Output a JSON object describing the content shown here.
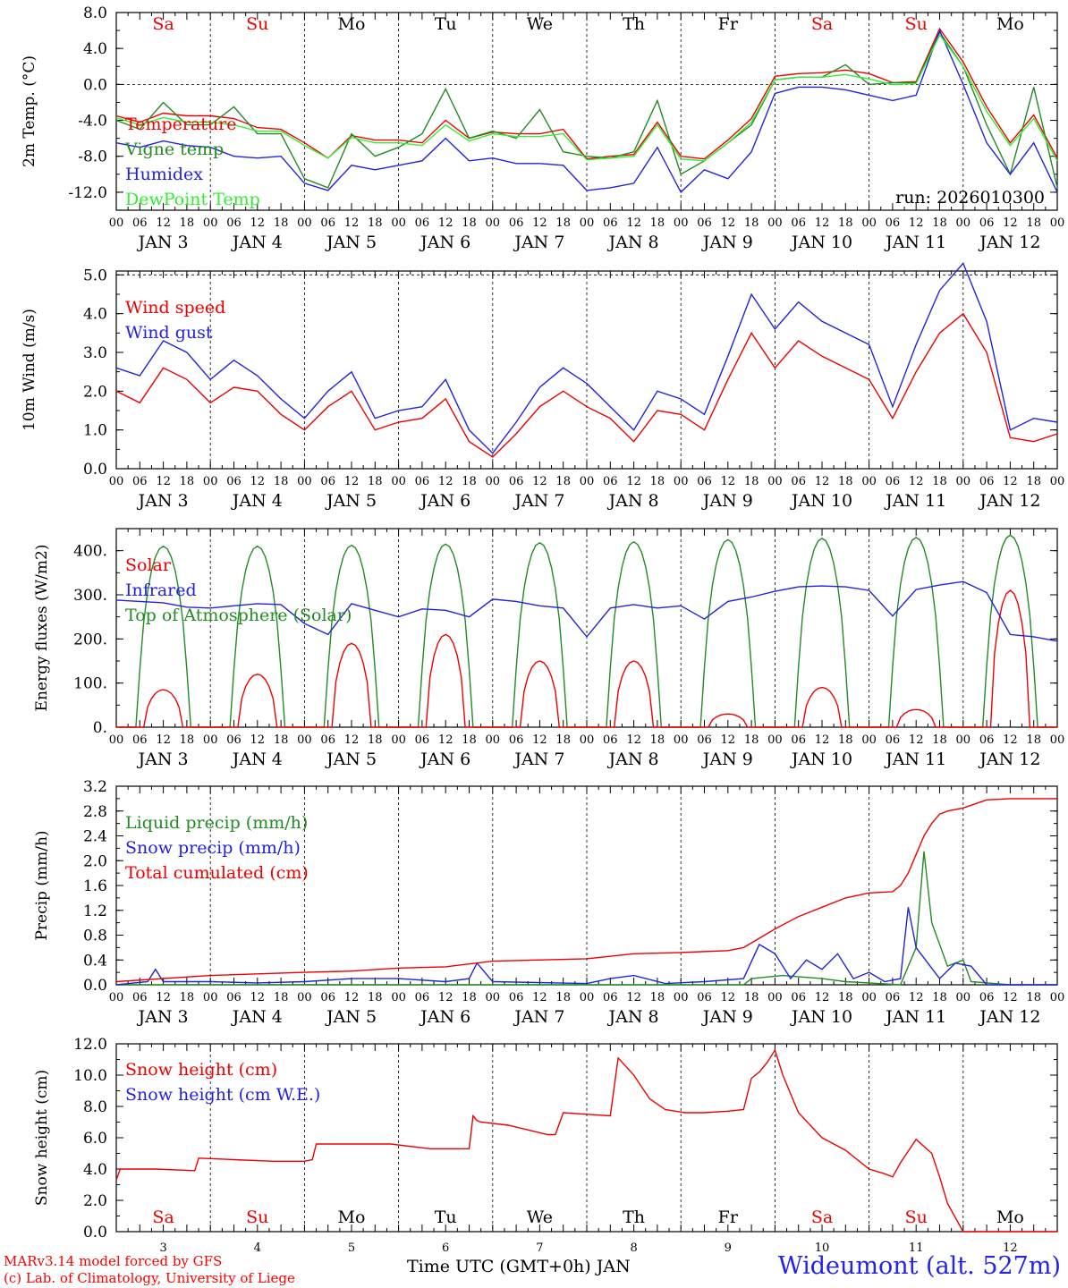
{
  "chart_data": [
    {
      "type": "line",
      "ylabel": "2m Temp. (°C)",
      "ylim": [
        -14,
        8
      ],
      "yticks": [
        -12.0,
        -8.0,
        -4.0,
        0.0,
        4.0,
        8.0
      ],
      "ytick_labels": [
        "-12.0",
        "-8.0",
        "-4.0",
        "0.0",
        "4.0",
        "8.0"
      ],
      "dashed_reference": [
        0
      ],
      "run_label": "run: 2026010300",
      "series": [
        {
          "name": "Temperature",
          "color": "#ee0000",
          "x": [
            0,
            6,
            12,
            18,
            24,
            30,
            36,
            42,
            48,
            54,
            60,
            66,
            72,
            78,
            84,
            90,
            96,
            102,
            108,
            114,
            120,
            126,
            132,
            138,
            144,
            150,
            156,
            162,
            168,
            174,
            180,
            186,
            192,
            198,
            204,
            210,
            216,
            222,
            228,
            234,
            240
          ],
          "values": [
            -3.5,
            -4.2,
            -3.2,
            -3.5,
            -3.5,
            -3.8,
            -4.8,
            -5.0,
            -6.5,
            -8.2,
            -5.7,
            -6.2,
            -6.2,
            -6.5,
            -4.0,
            -6.0,
            -5.3,
            -5.5,
            -5.5,
            -5.0,
            -8.3,
            -8.0,
            -7.8,
            -4.2,
            -8.0,
            -8.3,
            -6.2,
            -3.8,
            0.9,
            1.2,
            1.3,
            1.6,
            1.2,
            0.2,
            0.3,
            6.2,
            2.5,
            -2.5,
            -6.5,
            -3.4,
            -8.2
          ]
        },
        {
          "name": "Vigne temp",
          "color": "#228b22",
          "x": [
            0,
            6,
            12,
            18,
            24,
            30,
            36,
            42,
            48,
            54,
            60,
            66,
            72,
            78,
            84,
            90,
            96,
            102,
            108,
            114,
            120,
            126,
            132,
            138,
            144,
            150,
            156,
            162,
            168,
            174,
            180,
            186,
            192,
            198,
            204,
            210,
            216,
            222,
            228,
            234,
            240
          ],
          "values": [
            -4.0,
            -5.0,
            -2.0,
            -4.5,
            -4.5,
            -2.5,
            -5.5,
            -5.5,
            -10.5,
            -11.5,
            -5.5,
            -8.0,
            -7.0,
            -5.5,
            -0.5,
            -6.0,
            -5.2,
            -6.0,
            -2.8,
            -7.5,
            -8.0,
            -8.2,
            -7.5,
            -1.8,
            -10.0,
            -8.5,
            -6.5,
            -4.5,
            0.5,
            0.8,
            0.8,
            2.2,
            0.0,
            0.2,
            0.2,
            5.8,
            2.0,
            -4.5,
            -10.0,
            -0.3,
            -11.5
          ]
        },
        {
          "name": "Humidex",
          "color": "#2222dd",
          "x": [
            0,
            6,
            12,
            18,
            24,
            30,
            36,
            42,
            48,
            54,
            60,
            66,
            72,
            78,
            84,
            90,
            96,
            102,
            108,
            114,
            120,
            126,
            132,
            138,
            144,
            150,
            156,
            162,
            168,
            174,
            180,
            186,
            192,
            198,
            204,
            210,
            216,
            222,
            228,
            234,
            240
          ],
          "values": [
            -6.5,
            -7.0,
            -6.3,
            -6.8,
            -7.0,
            -8.0,
            -8.2,
            -8.0,
            -11.0,
            -11.8,
            -9.0,
            -9.5,
            -9.0,
            -8.5,
            -6.0,
            -8.5,
            -8.2,
            -8.8,
            -8.8,
            -9.0,
            -11.8,
            -11.5,
            -11.0,
            -7.0,
            -12.0,
            -9.5,
            -10.5,
            -7.5,
            -1.0,
            -0.3,
            -0.3,
            -0.6,
            -1.2,
            -1.8,
            -1.2,
            6.0,
            0.0,
            -6.5,
            -10.0,
            -6.5,
            -12.0
          ]
        },
        {
          "name": "DewPoint Temp",
          "color": "#33ee33",
          "x": [
            0,
            6,
            12,
            18,
            24,
            30,
            36,
            42,
            48,
            54,
            60,
            66,
            72,
            78,
            84,
            90,
            96,
            102,
            108,
            114,
            120,
            126,
            132,
            138,
            144,
            150,
            156,
            162,
            168,
            174,
            180,
            186,
            192,
            198,
            204,
            210,
            216,
            222,
            228,
            234,
            240
          ],
          "values": [
            -3.7,
            -4.5,
            -3.7,
            -4.2,
            -4.2,
            -4.5,
            -5.2,
            -5.2,
            -6.8,
            -8.2,
            -5.9,
            -6.5,
            -6.5,
            -6.8,
            -4.5,
            -6.3,
            -5.5,
            -5.8,
            -5.8,
            -5.5,
            -8.4,
            -8.2,
            -8.0,
            -4.5,
            -8.3,
            -8.5,
            -6.5,
            -4.2,
            0.5,
            0.8,
            0.8,
            1.1,
            0.6,
            0.0,
            0.1,
            5.5,
            2.0,
            -3.0,
            -6.8,
            -3.8,
            -8.5
          ]
        }
      ]
    },
    {
      "type": "line",
      "ylabel": "10m Wind (m/s)",
      "ylim": [
        0,
        5.1
      ],
      "yticks": [
        0.0,
        1.0,
        2.0,
        3.0,
        4.0,
        5.0
      ],
      "ytick_labels": [
        "0.0",
        "1.0",
        "2.0",
        "3.0",
        "4.0",
        "5.0"
      ],
      "dashed_reference": [
        5.0
      ],
      "series": [
        {
          "name": "Wind speed",
          "color": "#ee0000",
          "x": [
            0,
            6,
            12,
            18,
            24,
            30,
            36,
            42,
            48,
            54,
            60,
            66,
            72,
            78,
            84,
            90,
            96,
            102,
            108,
            114,
            120,
            126,
            132,
            138,
            144,
            150,
            156,
            162,
            168,
            174,
            180,
            186,
            192,
            198,
            204,
            210,
            216,
            222,
            228,
            234,
            240
          ],
          "values": [
            2.0,
            1.7,
            2.6,
            2.3,
            1.7,
            2.1,
            2.0,
            1.4,
            1.0,
            1.6,
            2.0,
            1.0,
            1.2,
            1.3,
            1.8,
            0.7,
            0.3,
            0.9,
            1.6,
            2.0,
            1.6,
            1.3,
            0.7,
            1.5,
            1.4,
            1.0,
            2.3,
            3.5,
            2.6,
            3.3,
            2.9,
            2.6,
            2.3,
            1.3,
            2.5,
            3.5,
            4.0,
            3.0,
            0.8,
            0.7,
            0.9
          ]
        },
        {
          "name": "Wind gust",
          "color": "#2222dd",
          "x": [
            0,
            6,
            12,
            18,
            24,
            30,
            36,
            42,
            48,
            54,
            60,
            66,
            72,
            78,
            84,
            90,
            96,
            102,
            108,
            114,
            120,
            126,
            132,
            138,
            144,
            150,
            156,
            162,
            168,
            174,
            180,
            186,
            192,
            198,
            204,
            210,
            216,
            222,
            228,
            234,
            240
          ],
          "values": [
            2.6,
            2.4,
            3.3,
            3.0,
            2.3,
            2.8,
            2.4,
            1.8,
            1.3,
            2.0,
            2.5,
            1.3,
            1.5,
            1.6,
            2.3,
            1.0,
            0.4,
            1.2,
            2.1,
            2.6,
            2.2,
            1.6,
            1.0,
            2.0,
            1.8,
            1.4,
            2.9,
            4.5,
            3.6,
            4.3,
            3.8,
            3.5,
            3.2,
            1.6,
            3.2,
            4.6,
            5.3,
            3.8,
            1.0,
            1.3,
            1.2
          ]
        }
      ]
    },
    {
      "type": "line",
      "ylabel": "Energy fluxes (W/m2)",
      "ylim": [
        0,
        450
      ],
      "yticks": [
        0,
        100,
        200,
        300,
        400
      ],
      "ytick_labels": [
        "0.",
        "100.",
        "200.",
        "300.",
        "400."
      ],
      "solar_peaks": [
        85,
        120,
        190,
        210,
        150,
        150,
        30,
        90,
        40,
        310
      ],
      "toa_peaks": [
        410,
        410,
        412,
        415,
        418,
        420,
        425,
        428,
        430,
        435
      ],
      "series": [
        {
          "name": "Solar",
          "color": "#ee0000"
        },
        {
          "name": "Infrared",
          "color": "#2222dd",
          "x": [
            0,
            6,
            12,
            18,
            24,
            30,
            36,
            42,
            48,
            54,
            60,
            66,
            72,
            78,
            84,
            90,
            96,
            102,
            108,
            114,
            120,
            126,
            132,
            138,
            144,
            150,
            156,
            162,
            168,
            174,
            180,
            186,
            192,
            198,
            204,
            210,
            216,
            222,
            228,
            234,
            240
          ],
          "values": [
            288,
            285,
            282,
            272,
            270,
            275,
            280,
            278,
            235,
            210,
            280,
            265,
            250,
            268,
            265,
            250,
            290,
            285,
            275,
            270,
            205,
            270,
            278,
            270,
            275,
            245,
            285,
            295,
            308,
            318,
            320,
            318,
            310,
            252,
            312,
            322,
            330,
            305,
            210,
            205,
            195
          ]
        },
        {
          "name": "Top of Atmosphere (Solar)",
          "color": "#228b22"
        }
      ]
    },
    {
      "type": "line",
      "ylabel": "Precip (mm/h)",
      "ylim": [
        0,
        3.2
      ],
      "yticks": [
        0.0,
        0.4,
        0.8,
        1.2,
        1.6,
        2.0,
        2.4,
        2.8,
        3.2
      ],
      "ytick_labels": [
        "0.0",
        "0.4",
        "0.8",
        "1.2",
        "1.6",
        "2.0",
        "2.4",
        "2.8",
        "3.2"
      ],
      "series": [
        {
          "name": "Liquid precip (mm/h)",
          "color": "#228b22",
          "x": [
            0,
            48,
            96,
            144,
            150,
            156,
            160,
            162,
            170,
            180,
            186,
            200,
            204,
            206,
            208,
            212,
            216,
            218,
            228,
            240
          ],
          "values": [
            0,
            0,
            0,
            0,
            0,
            0,
            0.0,
            0.1,
            0.15,
            0.1,
            0.05,
            0,
            0.6,
            2.15,
            1.0,
            0.3,
            0.4,
            0.05,
            0,
            0
          ]
        },
        {
          "name": "Snow precip (mm/h)",
          "color": "#2222dd",
          "x": [
            0,
            8,
            10,
            12,
            24,
            36,
            48,
            60,
            72,
            84,
            90,
            92,
            96,
            120,
            126,
            132,
            140,
            150,
            160,
            164,
            168,
            172,
            176,
            180,
            184,
            188,
            192,
            196,
            200,
            202,
            204,
            210,
            214,
            218,
            222,
            240
          ],
          "values": [
            0,
            0.05,
            0.25,
            0.05,
            0.05,
            0.03,
            0.05,
            0.1,
            0.1,
            0.05,
            0.1,
            0.35,
            0.05,
            0.02,
            0.1,
            0.15,
            0.02,
            0.05,
            0.1,
            0.65,
            0.5,
            0.1,
            0.4,
            0.25,
            0.5,
            0.1,
            0.2,
            0.05,
            0.1,
            1.25,
            0.6,
            0.1,
            0.35,
            0.3,
            0,
            0
          ]
        },
        {
          "name": "Total cumulated (cm)",
          "color": "#ee0000",
          "x": [
            0,
            24,
            48,
            60,
            72,
            84,
            96,
            120,
            132,
            144,
            156,
            160,
            164,
            168,
            174,
            180,
            186,
            192,
            198,
            200,
            202,
            204,
            206,
            208,
            210,
            212,
            216,
            222,
            228,
            234,
            240
          ],
          "values": [
            0.05,
            0.15,
            0.2,
            0.22,
            0.27,
            0.29,
            0.38,
            0.42,
            0.5,
            0.52,
            0.55,
            0.6,
            0.75,
            0.9,
            1.1,
            1.25,
            1.4,
            1.48,
            1.5,
            1.6,
            1.8,
            2.1,
            2.4,
            2.6,
            2.75,
            2.8,
            2.85,
            2.98,
            3.0,
            3.0,
            3.0
          ]
        }
      ]
    },
    {
      "type": "line",
      "ylabel": "Snow height (cm)",
      "ylim": [
        0,
        12
      ],
      "yticks": [
        0.0,
        2.0,
        4.0,
        6.0,
        8.0,
        10.0,
        12.0
      ],
      "ytick_labels": [
        "0.0",
        "2.0",
        "4.0",
        "6.0",
        "8.0",
        "10.0",
        "12.0"
      ],
      "series": [
        {
          "name": "Snow height (cm)",
          "color": "#ee0000",
          "x": [
            0,
            1,
            10,
            20,
            21,
            30,
            40,
            48,
            50,
            51,
            60,
            70,
            80,
            90,
            91,
            92,
            93,
            100,
            110,
            112,
            114,
            120,
            126,
            128,
            132,
            136,
            140,
            145,
            150,
            156,
            160,
            162,
            164,
            166,
            168,
            170,
            174,
            180,
            186,
            192,
            196,
            198,
            200,
            204,
            208,
            210,
            212,
            216,
            240
          ],
          "values": [
            3.3,
            4.0,
            4.0,
            3.9,
            4.7,
            4.6,
            4.5,
            4.5,
            4.6,
            5.6,
            5.6,
            5.6,
            5.3,
            5.3,
            7.4,
            7.1,
            7.0,
            6.8,
            6.2,
            6.2,
            7.6,
            7.5,
            7.4,
            11.1,
            10.0,
            8.5,
            7.8,
            7.6,
            7.6,
            7.7,
            7.8,
            9.8,
            10.2,
            10.8,
            11.6,
            10.0,
            7.6,
            6.0,
            5.2,
            4.0,
            3.7,
            3.5,
            4.4,
            5.9,
            5.0,
            3.5,
            1.8,
            0,
            0
          ]
        },
        {
          "name": "Snow height (cm W.E.)",
          "color": "#2222dd"
        }
      ]
    }
  ],
  "days": [
    "Sa",
    "Su",
    "Mo",
    "Tu",
    "We",
    "Th",
    "Fr",
    "Sa",
    "Su",
    "Mo"
  ],
  "day_colors": [
    "#ee0000",
    "#ee0000",
    "#000000",
    "#000000",
    "#000000",
    "#000000",
    "#000000",
    "#ee0000",
    "#ee0000",
    "#000000"
  ],
  "date_labels": [
    "JAN  3",
    "JAN  4",
    "JAN  5",
    "JAN  6",
    "JAN  7",
    "JAN  8",
    "JAN  9",
    "JAN 10",
    "JAN 11",
    "JAN 12"
  ],
  "hour_labels": [
    "00",
    "06",
    "12",
    "18"
  ],
  "last_hour_label": "00",
  "bottom_day_numbers": [
    "3",
    "4",
    "5",
    "6",
    "7",
    "8",
    "9",
    "10",
    "11",
    "12"
  ],
  "footer": {
    "model": "MARv3.14 model forced by GFS",
    "credit": "(c) Lab. of Climatology, University of Liege",
    "xtitle": "Time UTC (GMT+0h) JAN",
    "station": "Wideumont (alt. 527m)"
  }
}
